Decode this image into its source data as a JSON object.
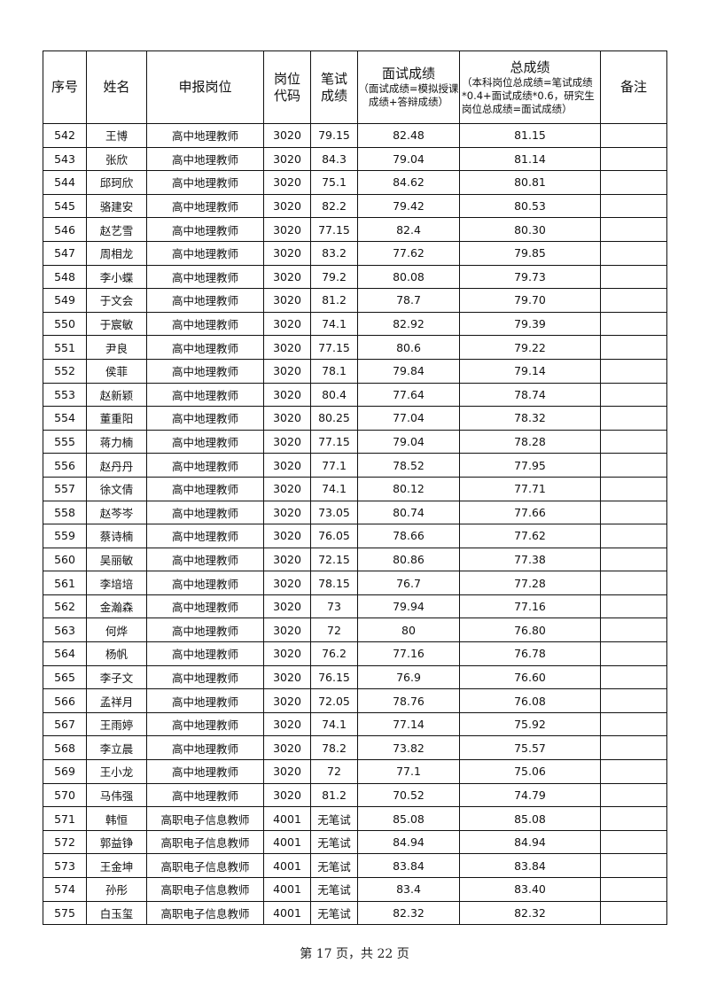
{
  "header": {
    "seq": "序号",
    "name": "姓名",
    "position": "申报岗位",
    "code": "岗位代码",
    "written": "笔试成绩",
    "interview_title": "面试成绩",
    "interview_note": "（面试成绩=模拟授课成绩+答辩成绩）",
    "total_title": "总成绩",
    "total_note": "（本科岗位总成绩=笔试成绩*0.4+面试成绩*0.6，研究生岗位总成绩=面试成绩）",
    "remark": "备注"
  },
  "rows": [
    [
      "542",
      "王博",
      "高中地理教师",
      "3020",
      "79.15",
      "82.48",
      "81.15",
      ""
    ],
    [
      "543",
      "张欣",
      "高中地理教师",
      "3020",
      "84.3",
      "79.04",
      "81.14",
      ""
    ],
    [
      "544",
      "邱珂欣",
      "高中地理教师",
      "3020",
      "75.1",
      "84.62",
      "80.81",
      ""
    ],
    [
      "545",
      "骆建安",
      "高中地理教师",
      "3020",
      "82.2",
      "79.42",
      "80.53",
      ""
    ],
    [
      "546",
      "赵艺雪",
      "高中地理教师",
      "3020",
      "77.15",
      "82.4",
      "80.30",
      ""
    ],
    [
      "547",
      "周相龙",
      "高中地理教师",
      "3020",
      "83.2",
      "77.62",
      "79.85",
      ""
    ],
    [
      "548",
      "李小蝶",
      "高中地理教师",
      "3020",
      "79.2",
      "80.08",
      "79.73",
      ""
    ],
    [
      "549",
      "于文会",
      "高中地理教师",
      "3020",
      "81.2",
      "78.7",
      "79.70",
      ""
    ],
    [
      "550",
      "于宸敏",
      "高中地理教师",
      "3020",
      "74.1",
      "82.92",
      "79.39",
      ""
    ],
    [
      "551",
      "尹良",
      "高中地理教师",
      "3020",
      "77.15",
      "80.6",
      "79.22",
      ""
    ],
    [
      "552",
      "侯菲",
      "高中地理教师",
      "3020",
      "78.1",
      "79.84",
      "79.14",
      ""
    ],
    [
      "553",
      "赵新颖",
      "高中地理教师",
      "3020",
      "80.4",
      "77.64",
      "78.74",
      ""
    ],
    [
      "554",
      "董重阳",
      "高中地理教师",
      "3020",
      "80.25",
      "77.04",
      "78.32",
      ""
    ],
    [
      "555",
      "蒋力楠",
      "高中地理教师",
      "3020",
      "77.15",
      "79.04",
      "78.28",
      ""
    ],
    [
      "556",
      "赵丹丹",
      "高中地理教师",
      "3020",
      "77.1",
      "78.52",
      "77.95",
      ""
    ],
    [
      "557",
      "徐文倩",
      "高中地理教师",
      "3020",
      "74.1",
      "80.12",
      "77.71",
      ""
    ],
    [
      "558",
      "赵芩岑",
      "高中地理教师",
      "3020",
      "73.05",
      "80.74",
      "77.66",
      ""
    ],
    [
      "559",
      "蔡诗楠",
      "高中地理教师",
      "3020",
      "76.05",
      "78.66",
      "77.62",
      ""
    ],
    [
      "560",
      "吴丽敏",
      "高中地理教师",
      "3020",
      "72.15",
      "80.86",
      "77.38",
      ""
    ],
    [
      "561",
      "李培培",
      "高中地理教师",
      "3020",
      "78.15",
      "76.7",
      "77.28",
      ""
    ],
    [
      "562",
      "金瀚森",
      "高中地理教师",
      "3020",
      "73",
      "79.94",
      "77.16",
      ""
    ],
    [
      "563",
      "何烨",
      "高中地理教师",
      "3020",
      "72",
      "80",
      "76.80",
      ""
    ],
    [
      "564",
      "杨帆",
      "高中地理教师",
      "3020",
      "76.2",
      "77.16",
      "76.78",
      ""
    ],
    [
      "565",
      "李子文",
      "高中地理教师",
      "3020",
      "76.15",
      "76.9",
      "76.60",
      ""
    ],
    [
      "566",
      "孟祥月",
      "高中地理教师",
      "3020",
      "72.05",
      "78.76",
      "76.08",
      ""
    ],
    [
      "567",
      "王雨婷",
      "高中地理教师",
      "3020",
      "74.1",
      "77.14",
      "75.92",
      ""
    ],
    [
      "568",
      "李立晨",
      "高中地理教师",
      "3020",
      "78.2",
      "73.82",
      "75.57",
      ""
    ],
    [
      "569",
      "王小龙",
      "高中地理教师",
      "3020",
      "72",
      "77.1",
      "75.06",
      ""
    ],
    [
      "570",
      "马伟强",
      "高中地理教师",
      "3020",
      "81.2",
      "70.52",
      "74.79",
      ""
    ],
    [
      "571",
      "韩恒",
      "高职电子信息教师",
      "4001",
      "无笔试",
      "85.08",
      "85.08",
      ""
    ],
    [
      "572",
      "郭益铮",
      "高职电子信息教师",
      "4001",
      "无笔试",
      "84.94",
      "84.94",
      ""
    ],
    [
      "573",
      "王金坤",
      "高职电子信息教师",
      "4001",
      "无笔试",
      "83.84",
      "83.84",
      ""
    ],
    [
      "574",
      "孙彤",
      "高职电子信息教师",
      "4001",
      "无笔试",
      "83.4",
      "83.40",
      ""
    ],
    [
      "575",
      "白玉玺",
      "高职电子信息教师",
      "4001",
      "无笔试",
      "82.32",
      "82.32",
      ""
    ]
  ],
  "footer": "第 17 页，共 22 页"
}
